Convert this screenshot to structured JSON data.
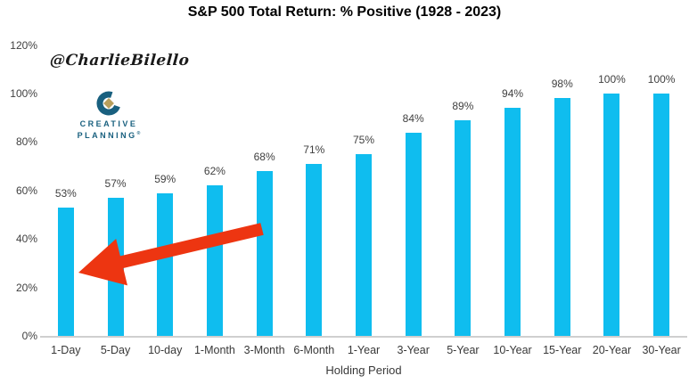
{
  "attribution": {
    "handle": "@CharlieBilello"
  },
  "logo": {
    "line1": "CREATIVE",
    "line2": "PLANNING",
    "registered_mark": "®",
    "text_color": "#19607F",
    "diamond_color": "#B89F5D"
  },
  "chart_data": {
    "type": "bar",
    "title": "S&P 500 Total Return: % Positive (1928 - 2023)",
    "xlabel": "Holding Period",
    "ylabel": "",
    "categories": [
      "1-Day",
      "5-Day",
      "10-day",
      "1-Month",
      "3-Month",
      "6-Month",
      "1-Year",
      "3-Year",
      "5-Year",
      "10-Year",
      "15-Year",
      "20-Year",
      "30-Year"
    ],
    "values": [
      53,
      57,
      59,
      62,
      68,
      71,
      75,
      84,
      89,
      94,
      98,
      100,
      100
    ],
    "bar_labels": [
      "53%",
      "57%",
      "59%",
      "62%",
      "68%",
      "71%",
      "75%",
      "84%",
      "89%",
      "94%",
      "98%",
      "100%",
      "100%"
    ],
    "ylim": [
      0,
      120
    ],
    "ytick_values": [
      0,
      20,
      40,
      60,
      80,
      100,
      120
    ],
    "ytick_labels": [
      "0%",
      "20%",
      "40%",
      "60%",
      "80%",
      "100%",
      "120%"
    ],
    "grid": false,
    "legend": "none",
    "bar_color": "#0FBDEF",
    "label_color": "#404040",
    "annotation": {
      "shape": "arrow",
      "color": "#ED3511",
      "meaning": "red arrow pointing down-left toward the 1-Day bar"
    }
  }
}
